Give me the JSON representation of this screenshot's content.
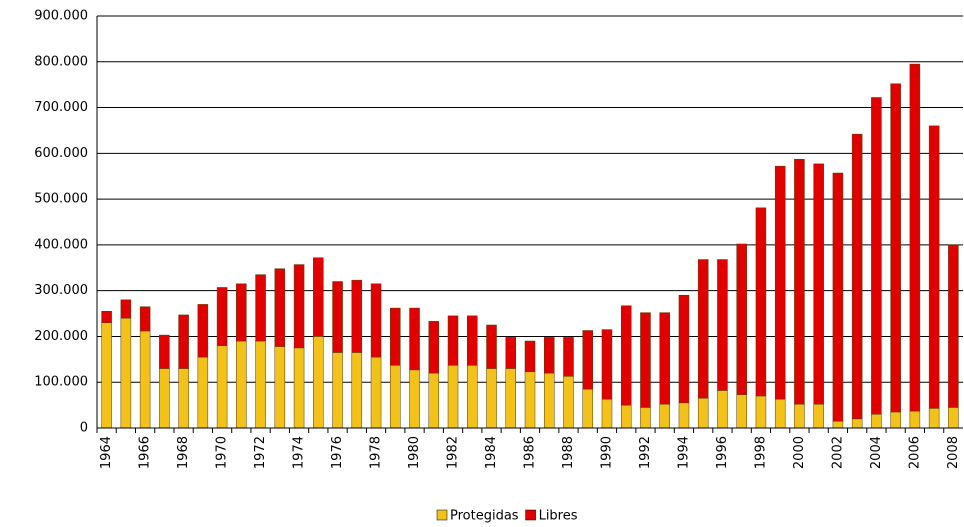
{
  "chart_data": {
    "type": "stacked-bar",
    "categories": [
      "1964",
      null,
      "1966",
      null,
      "1968",
      null,
      "1970",
      null,
      "1972",
      null,
      "1974",
      null,
      "1976",
      null,
      "1978",
      null,
      "1980",
      null,
      "1982",
      null,
      "1984",
      null,
      "1986",
      null,
      "1988",
      null,
      "1990",
      null,
      "1992",
      null,
      "1994",
      null,
      "1996",
      null,
      "1998",
      null,
      "2000",
      null,
      "2002",
      null,
      "2004",
      null,
      "2006",
      null,
      "2008"
    ],
    "series": [
      {
        "name": "Protegidas",
        "color": "#f2c21a",
        "values": [
          230000,
          240000,
          212000,
          130000,
          130000,
          155000,
          180000,
          190000,
          190000,
          178000,
          175000,
          200000,
          165000,
          165000,
          155000,
          137000,
          127000,
          120000,
          137000,
          137000,
          130000,
          130000,
          123000,
          120000,
          113000,
          85000,
          63000,
          50000,
          45000,
          52000,
          55000,
          65000,
          82000,
          73000,
          70000,
          63000,
          52000,
          52000,
          15000,
          20000,
          30000,
          35000,
          37000,
          43000,
          45000
        ]
      },
      {
        "name": "Libres",
        "color": "#e00000",
        "values": [
          25000,
          40000,
          53000,
          73000,
          117000,
          115000,
          127000,
          125000,
          145000,
          170000,
          182000,
          172000,
          155000,
          158000,
          160000,
          125000,
          135000,
          113000,
          108000,
          108000,
          95000,
          68000,
          67000,
          78000,
          85000,
          128000,
          152000,
          217000,
          207000,
          200000,
          235000,
          303000,
          286000,
          329000,
          411000,
          509000,
          535000,
          525000,
          542000,
          622000,
          692000,
          717000,
          758000,
          617000,
          355000
        ]
      }
    ],
    "ylim": [
      0,
      900000
    ],
    "yticks": [
      0,
      {
        "value": 100000,
        "label": "100.000"
      },
      {
        "value": 200000,
        "label": "200.000"
      },
      {
        "value": 300000,
        "label": "300.000"
      },
      {
        "value": 400000,
        "label": "400.000"
      },
      {
        "value": 500000,
        "label": "500.000"
      },
      {
        "value": 600000,
        "label": "600.000"
      },
      {
        "value": 700000,
        "label": "700.000"
      },
      {
        "value": 800000,
        "label": "800.000"
      },
      {
        "value": 900000,
        "label": "900.000"
      }
    ],
    "grid": true,
    "legend": "bottom"
  }
}
